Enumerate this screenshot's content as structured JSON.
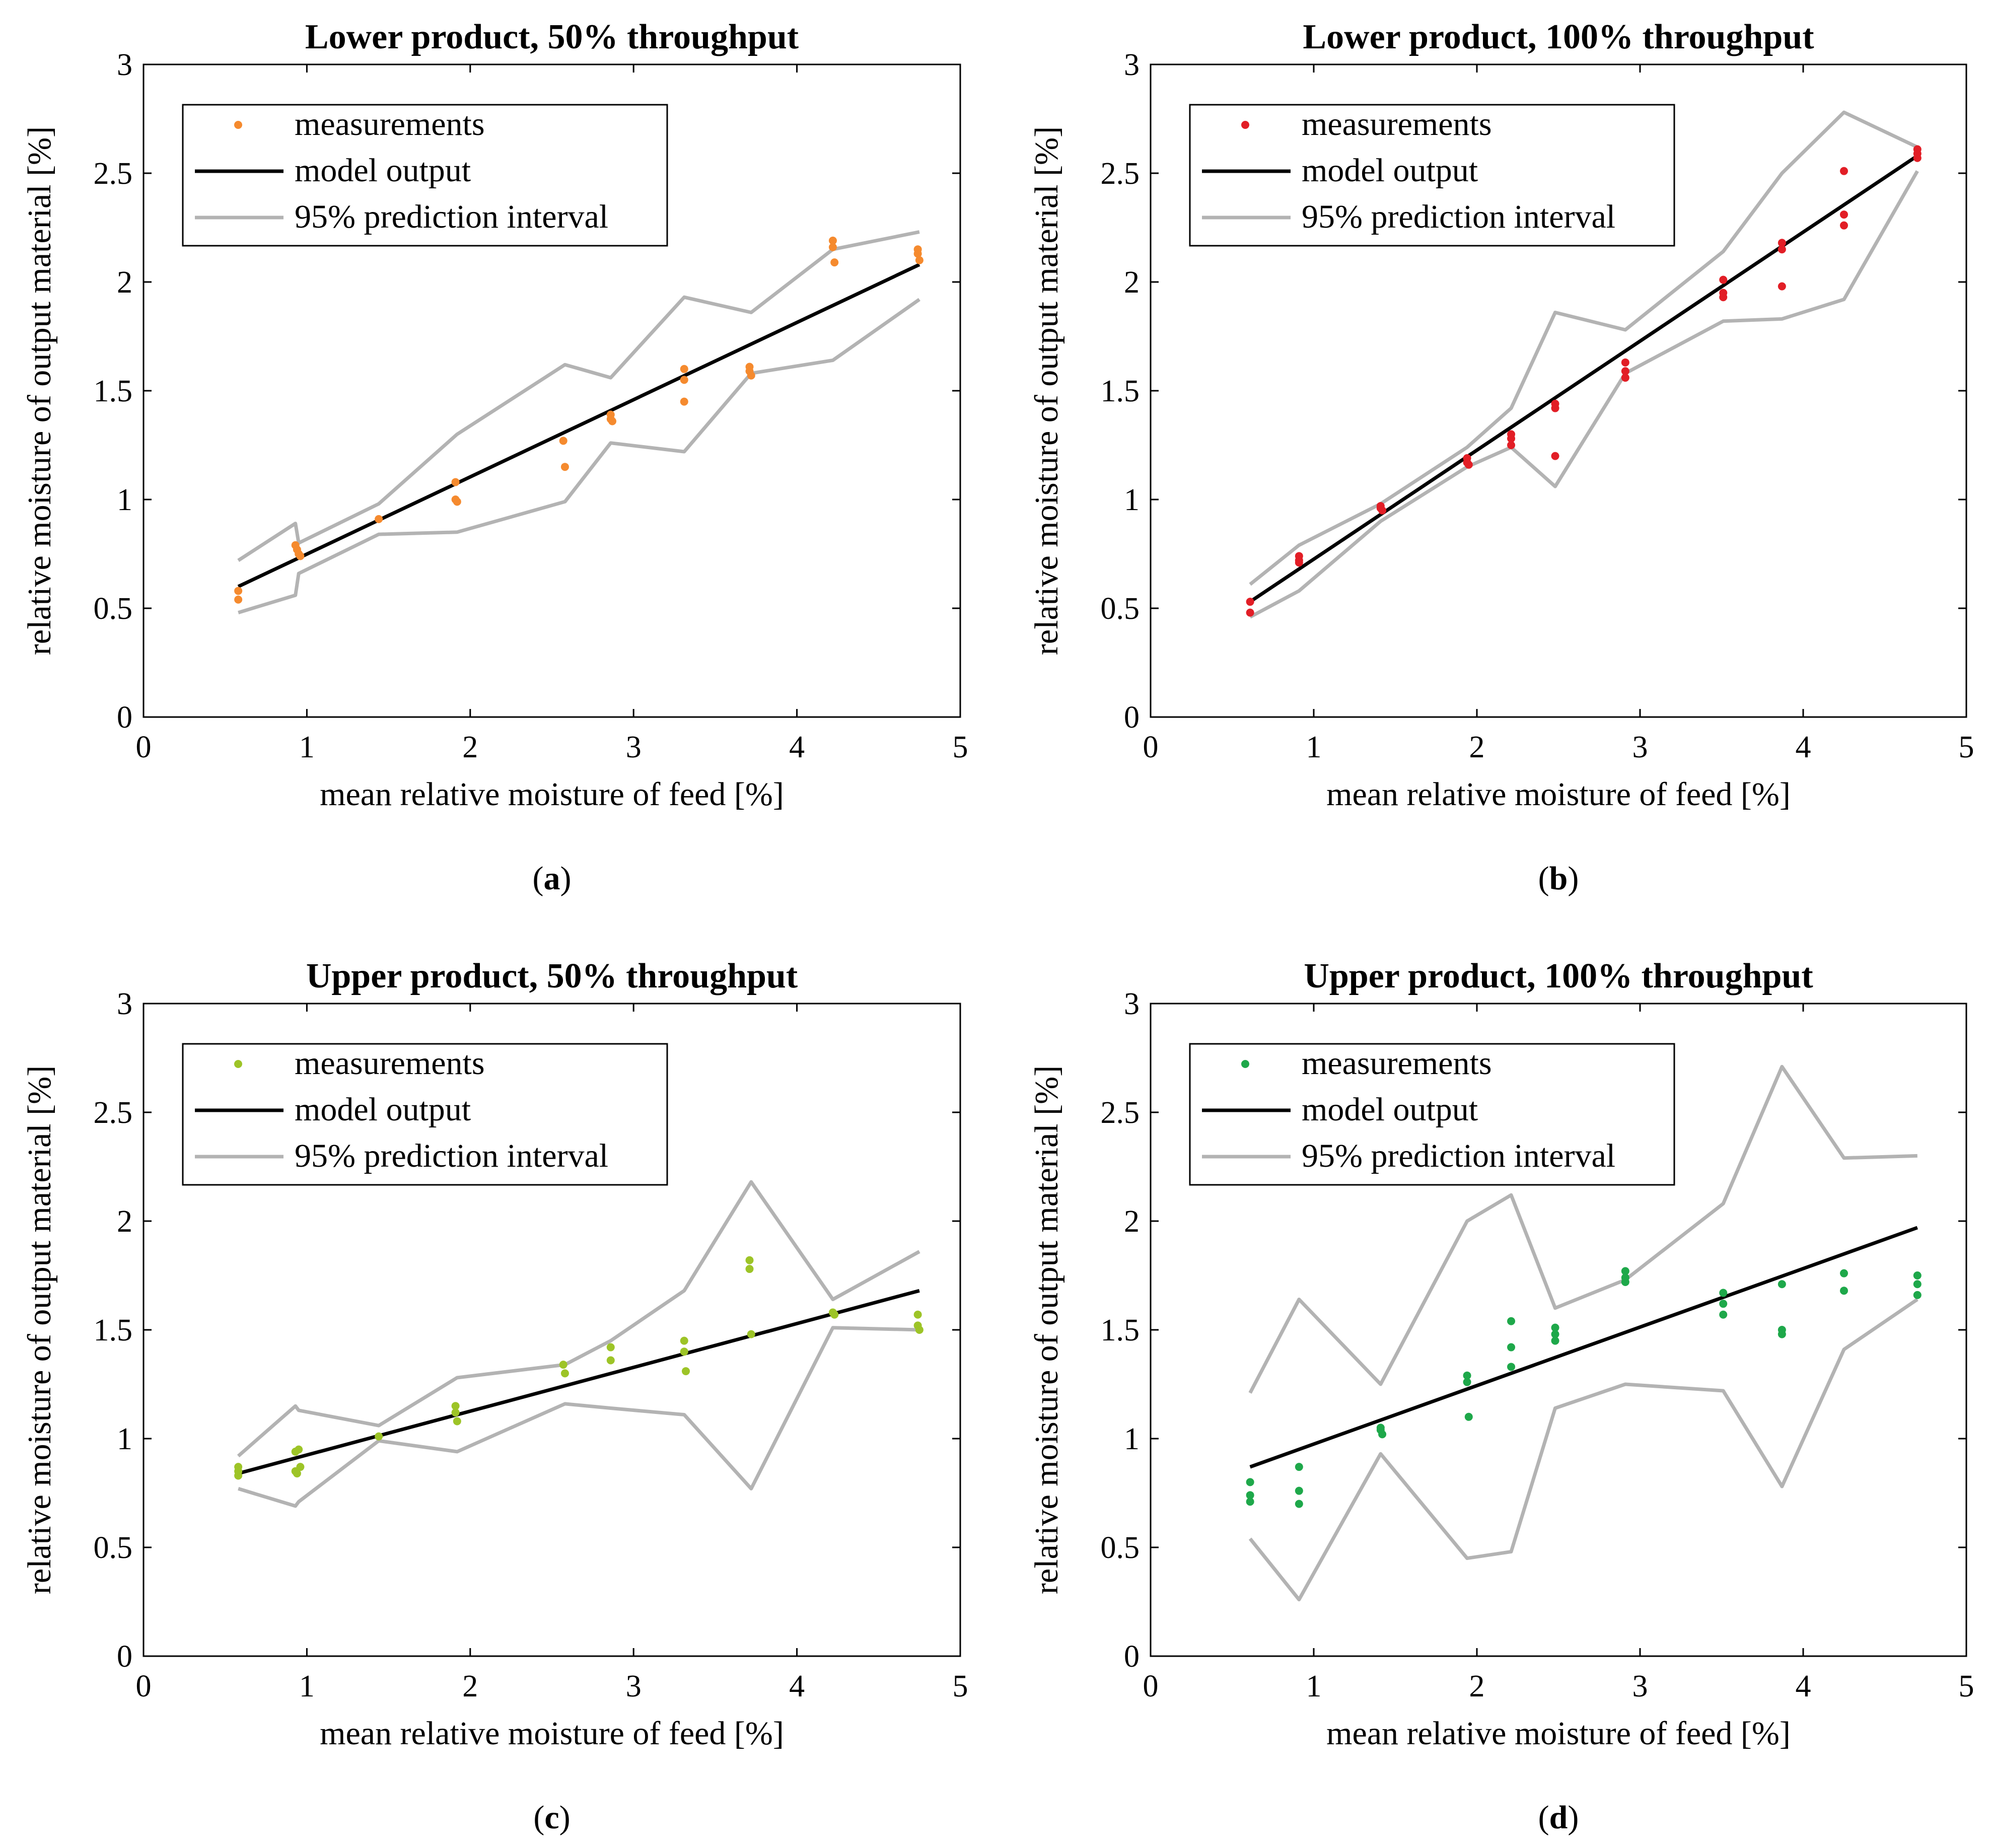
{
  "chart_data": [
    {
      "type": "scatter",
      "panel_label": "a",
      "title": "Lower product, 50% throughput",
      "xlabel": "mean relative moisture of feed [%]",
      "ylabel": "relative moisture of output material [%]",
      "xlim": [
        0,
        5
      ],
      "ylim": [
        0,
        3
      ],
      "xticks": [
        "0",
        "1",
        "2",
        "3",
        "4",
        "5"
      ],
      "yticks": [
        "0",
        "0.5",
        "1",
        "1.5",
        "2",
        "2.5",
        "3"
      ],
      "legend_position": "top-left",
      "legend": [
        "measurements",
        "model output",
        "95% prediction interval"
      ],
      "colors": {
        "measurements": "#F58A2E",
        "model": "#000000",
        "interval": "#B3B3B3"
      },
      "measurements": [
        [
          0.58,
          0.58
        ],
        [
          0.58,
          0.54
        ],
        [
          0.93,
          0.79
        ],
        [
          0.94,
          0.77
        ],
        [
          0.95,
          0.75
        ],
        [
          0.96,
          0.74
        ],
        [
          1.44,
          0.91
        ],
        [
          1.91,
          1.08
        ],
        [
          1.91,
          1.0
        ],
        [
          1.92,
          0.99
        ],
        [
          2.57,
          1.27
        ],
        [
          2.58,
          1.15
        ],
        [
          2.86,
          1.39
        ],
        [
          2.86,
          1.37
        ],
        [
          2.87,
          1.36
        ],
        [
          3.31,
          1.6
        ],
        [
          3.31,
          1.55
        ],
        [
          3.31,
          1.45
        ],
        [
          3.71,
          1.61
        ],
        [
          3.71,
          1.59
        ],
        [
          3.72,
          1.57
        ],
        [
          4.22,
          2.19
        ],
        [
          4.22,
          2.16
        ],
        [
          4.23,
          2.09
        ],
        [
          4.74,
          2.15
        ],
        [
          4.74,
          2.13
        ],
        [
          4.75,
          2.1
        ]
      ],
      "model_output": [
        [
          0.58,
          0.6
        ],
        [
          4.75,
          2.08
        ]
      ],
      "interval_upper": [
        [
          0.58,
          0.72
        ],
        [
          0.93,
          0.89
        ],
        [
          0.95,
          0.8
        ],
        [
          1.44,
          0.98
        ],
        [
          1.92,
          1.3
        ],
        [
          2.58,
          1.62
        ],
        [
          2.86,
          1.56
        ],
        [
          3.31,
          1.93
        ],
        [
          3.72,
          1.86
        ],
        [
          4.22,
          2.15
        ],
        [
          4.75,
          2.23
        ]
      ],
      "interval_lower": [
        [
          0.58,
          0.48
        ],
        [
          0.93,
          0.56
        ],
        [
          0.95,
          0.66
        ],
        [
          1.44,
          0.84
        ],
        [
          1.92,
          0.85
        ],
        [
          2.58,
          0.99
        ],
        [
          2.86,
          1.26
        ],
        [
          3.31,
          1.22
        ],
        [
          3.72,
          1.58
        ],
        [
          4.22,
          1.64
        ],
        [
          4.75,
          1.92
        ]
      ]
    },
    {
      "type": "scatter",
      "panel_label": "b",
      "title": "Lower product, 100% throughput",
      "xlabel": "mean relative moisture of feed [%]",
      "ylabel": "relative moisture of output material [%]",
      "xlim": [
        0,
        5
      ],
      "ylim": [
        0,
        3
      ],
      "xticks": [
        "0",
        "1",
        "2",
        "3",
        "4",
        "5"
      ],
      "yticks": [
        "0",
        "0.5",
        "1",
        "1.5",
        "2",
        "2.5",
        "3"
      ],
      "legend_position": "top-left",
      "legend": [
        "measurements",
        "model output",
        "95% prediction interval"
      ],
      "colors": {
        "measurements": "#E21E26",
        "model": "#000000",
        "interval": "#B3B3B3"
      },
      "measurements": [
        [
          0.61,
          0.53
        ],
        [
          0.61,
          0.48
        ],
        [
          0.91,
          0.74
        ],
        [
          0.91,
          0.72
        ],
        [
          0.91,
          0.71
        ],
        [
          1.41,
          0.97
        ],
        [
          1.41,
          0.96
        ],
        [
          1.42,
          0.95
        ],
        [
          1.94,
          1.19
        ],
        [
          1.94,
          1.17
        ],
        [
          1.95,
          1.16
        ],
        [
          2.21,
          1.3
        ],
        [
          2.21,
          1.28
        ],
        [
          2.21,
          1.25
        ],
        [
          2.48,
          1.44
        ],
        [
          2.48,
          1.42
        ],
        [
          2.48,
          1.2
        ],
        [
          2.91,
          1.63
        ],
        [
          2.91,
          1.59
        ],
        [
          2.91,
          1.56
        ],
        [
          3.51,
          2.01
        ],
        [
          3.51,
          1.95
        ],
        [
          3.51,
          1.93
        ],
        [
          3.87,
          2.18
        ],
        [
          3.87,
          2.15
        ],
        [
          3.87,
          1.98
        ],
        [
          4.25,
          2.51
        ],
        [
          4.25,
          2.31
        ],
        [
          4.25,
          2.26
        ],
        [
          4.7,
          2.61
        ],
        [
          4.7,
          2.59
        ],
        [
          4.7,
          2.57
        ]
      ],
      "model_output": [
        [
          0.61,
          0.53
        ],
        [
          4.7,
          2.58
        ]
      ],
      "interval_upper": [
        [
          0.61,
          0.61
        ],
        [
          0.91,
          0.79
        ],
        [
          1.41,
          0.98
        ],
        [
          1.94,
          1.24
        ],
        [
          2.21,
          1.42
        ],
        [
          2.48,
          1.86
        ],
        [
          2.91,
          1.78
        ],
        [
          3.51,
          2.14
        ],
        [
          3.87,
          2.5
        ],
        [
          4.25,
          2.78
        ],
        [
          4.7,
          2.62
        ]
      ],
      "interval_lower": [
        [
          0.61,
          0.46
        ],
        [
          0.91,
          0.58
        ],
        [
          1.41,
          0.9
        ],
        [
          1.94,
          1.15
        ],
        [
          2.21,
          1.24
        ],
        [
          2.48,
          1.06
        ],
        [
          2.91,
          1.58
        ],
        [
          3.51,
          1.82
        ],
        [
          3.87,
          1.83
        ],
        [
          4.25,
          1.92
        ],
        [
          4.7,
          2.51
        ]
      ]
    },
    {
      "type": "scatter",
      "panel_label": "c",
      "title": "Upper product, 50% throughput",
      "xlabel": "mean relative moisture of feed [%]",
      "ylabel": "relative moisture of output material [%]",
      "xlim": [
        0,
        5
      ],
      "ylim": [
        0,
        3
      ],
      "xticks": [
        "0",
        "1",
        "2",
        "3",
        "4",
        "5"
      ],
      "yticks": [
        "0",
        "0.5",
        "1",
        "1.5",
        "2",
        "2.5",
        "3"
      ],
      "legend_position": "top-left",
      "legend": [
        "measurements",
        "model output",
        "95% prediction interval"
      ],
      "colors": {
        "measurements": "#9DC427",
        "model": "#000000",
        "interval": "#B3B3B3"
      },
      "measurements": [
        [
          0.58,
          0.87
        ],
        [
          0.58,
          0.85
        ],
        [
          0.58,
          0.83
        ],
        [
          0.93,
          0.94
        ],
        [
          0.95,
          0.95
        ],
        [
          0.93,
          0.85
        ],
        [
          0.94,
          0.84
        ],
        [
          0.96,
          0.87
        ],
        [
          1.44,
          1.01
        ],
        [
          1.91,
          1.15
        ],
        [
          1.91,
          1.12
        ],
        [
          1.92,
          1.08
        ],
        [
          2.57,
          1.34
        ],
        [
          2.58,
          1.3
        ],
        [
          2.86,
          1.42
        ],
        [
          2.86,
          1.36
        ],
        [
          3.31,
          1.45
        ],
        [
          3.31,
          1.4
        ],
        [
          3.32,
          1.31
        ],
        [
          3.71,
          1.82
        ],
        [
          3.71,
          1.78
        ],
        [
          3.72,
          1.48
        ],
        [
          4.22,
          1.58
        ],
        [
          4.23,
          1.57
        ],
        [
          4.74,
          1.57
        ],
        [
          4.74,
          1.52
        ],
        [
          4.75,
          1.5
        ]
      ],
      "model_output": [
        [
          0.58,
          0.84
        ],
        [
          4.75,
          1.68
        ]
      ],
      "interval_upper": [
        [
          0.58,
          0.92
        ],
        [
          0.93,
          1.15
        ],
        [
          0.95,
          1.13
        ],
        [
          1.44,
          1.06
        ],
        [
          1.92,
          1.28
        ],
        [
          2.58,
          1.34
        ],
        [
          2.86,
          1.45
        ],
        [
          3.31,
          1.68
        ],
        [
          3.72,
          2.18
        ],
        [
          4.22,
          1.64
        ],
        [
          4.75,
          1.86
        ]
      ],
      "interval_lower": [
        [
          0.58,
          0.77
        ],
        [
          0.93,
          0.69
        ],
        [
          0.95,
          0.71
        ],
        [
          1.44,
          0.99
        ],
        [
          1.92,
          0.94
        ],
        [
          2.58,
          1.16
        ],
        [
          2.86,
          1.14
        ],
        [
          3.31,
          1.11
        ],
        [
          3.72,
          0.77
        ],
        [
          4.22,
          1.51
        ],
        [
          4.75,
          1.5
        ]
      ]
    },
    {
      "type": "scatter",
      "panel_label": "d",
      "title": "Upper product, 100% throughput",
      "xlabel": "mean relative moisture of feed [%]",
      "ylabel": "relative moisture of output material [%]",
      "xlim": [
        0,
        5
      ],
      "ylim": [
        0,
        3
      ],
      "xticks": [
        "0",
        "1",
        "2",
        "3",
        "4",
        "5"
      ],
      "yticks": [
        "0",
        "0.5",
        "1",
        "1.5",
        "2",
        "2.5",
        "3"
      ],
      "legend_position": "top-left",
      "legend": [
        "measurements",
        "model output",
        "95% prediction interval"
      ],
      "colors": {
        "measurements": "#1EA84A",
        "model": "#000000",
        "interval": "#B3B3B3"
      },
      "measurements": [
        [
          0.61,
          0.8
        ],
        [
          0.61,
          0.74
        ],
        [
          0.61,
          0.71
        ],
        [
          0.91,
          0.87
        ],
        [
          0.91,
          0.76
        ],
        [
          0.91,
          0.7
        ],
        [
          1.41,
          1.05
        ],
        [
          1.41,
          1.04
        ],
        [
          1.42,
          1.02
        ],
        [
          1.94,
          1.29
        ],
        [
          1.94,
          1.26
        ],
        [
          1.95,
          1.1
        ],
        [
          2.21,
          1.54
        ],
        [
          2.21,
          1.42
        ],
        [
          2.21,
          1.33
        ],
        [
          2.48,
          1.51
        ],
        [
          2.48,
          1.48
        ],
        [
          2.48,
          1.45
        ],
        [
          2.91,
          1.77
        ],
        [
          2.91,
          1.74
        ],
        [
          2.91,
          1.72
        ],
        [
          3.51,
          1.67
        ],
        [
          3.51,
          1.62
        ],
        [
          3.51,
          1.57
        ],
        [
          3.87,
          1.71
        ],
        [
          3.87,
          1.5
        ],
        [
          3.87,
          1.48
        ],
        [
          4.25,
          1.76
        ],
        [
          4.25,
          1.68
        ],
        [
          4.7,
          1.75
        ],
        [
          4.7,
          1.71
        ],
        [
          4.7,
          1.66
        ]
      ],
      "model_output": [
        [
          0.61,
          0.87
        ],
        [
          4.7,
          1.97
        ]
      ],
      "interval_upper": [
        [
          0.61,
          1.21
        ],
        [
          0.91,
          1.64
        ],
        [
          1.41,
          1.25
        ],
        [
          1.94,
          2.0
        ],
        [
          2.21,
          2.12
        ],
        [
          2.48,
          1.6
        ],
        [
          2.91,
          1.73
        ],
        [
          3.51,
          2.08
        ],
        [
          3.87,
          2.71
        ],
        [
          4.25,
          2.29
        ],
        [
          4.7,
          2.3
        ]
      ],
      "interval_lower": [
        [
          0.61,
          0.54
        ],
        [
          0.91,
          0.26
        ],
        [
          1.41,
          0.93
        ],
        [
          1.94,
          0.45
        ],
        [
          2.21,
          0.48
        ],
        [
          2.48,
          1.14
        ],
        [
          2.91,
          1.25
        ],
        [
          3.51,
          1.22
        ],
        [
          3.87,
          0.78
        ],
        [
          4.25,
          1.41
        ],
        [
          4.7,
          1.64
        ]
      ]
    }
  ]
}
